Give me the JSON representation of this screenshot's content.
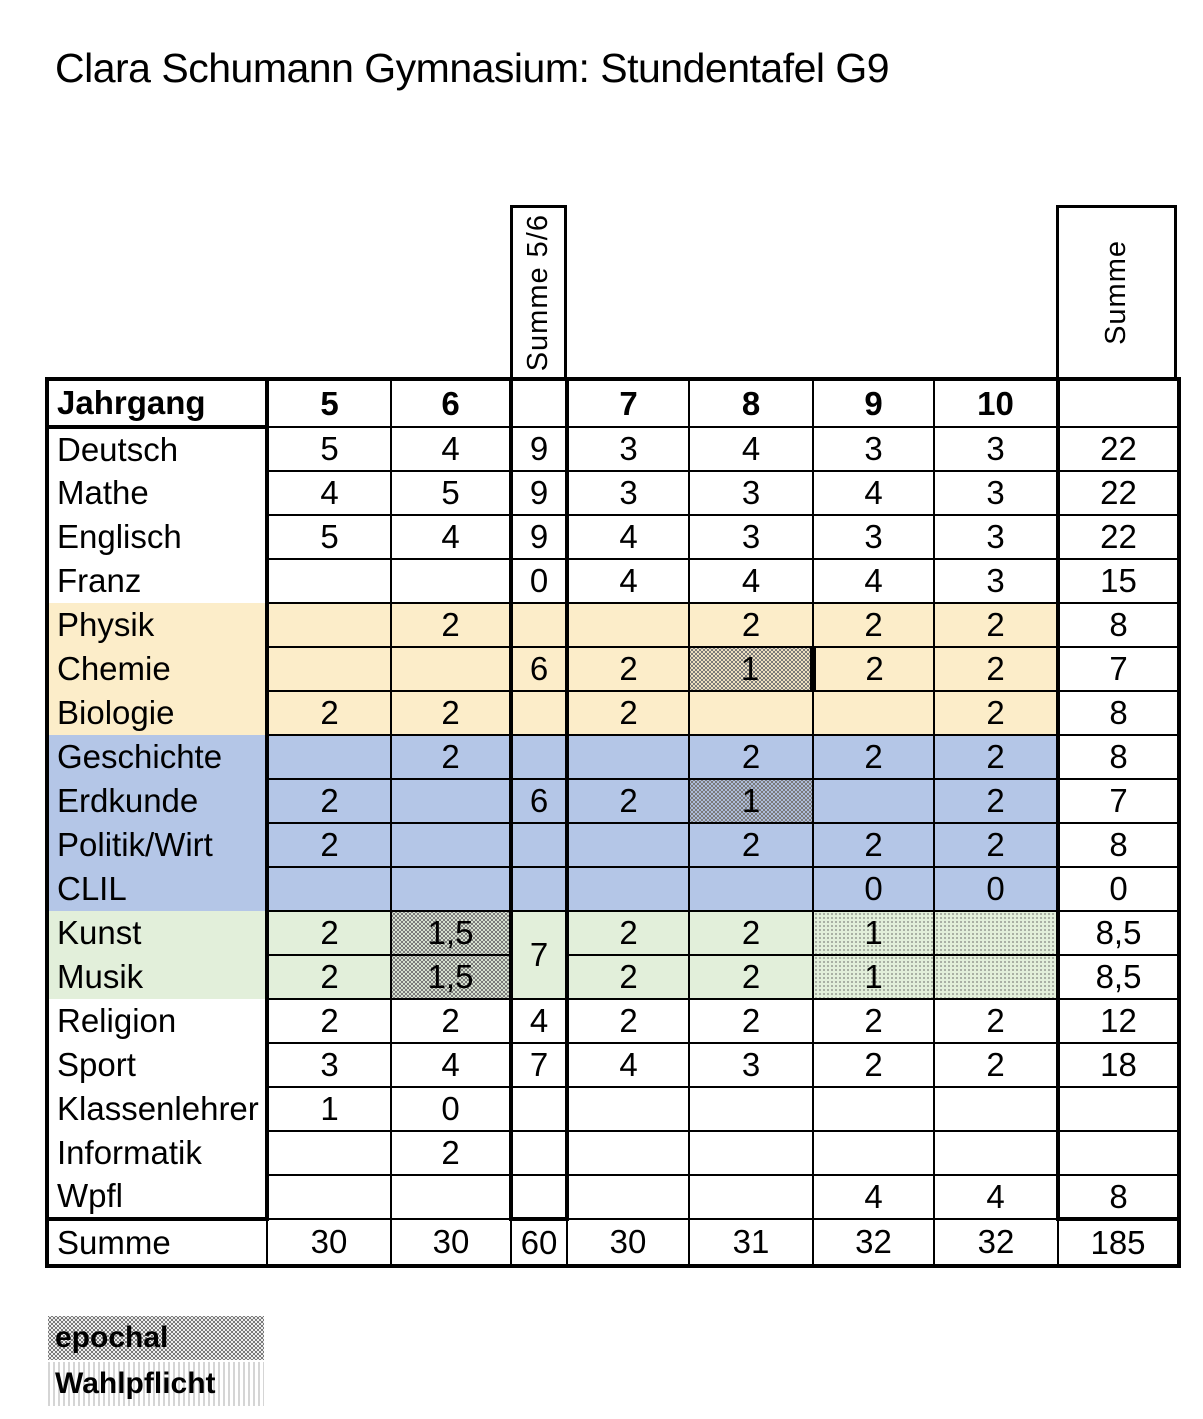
{
  "title": "Clara Schumann Gymnasium: Stundentafel G9",
  "colors": {
    "science_yellow": "#FCEDC9",
    "social_blue": "#B4C6E7",
    "arts_green": "#E2EFDA",
    "grid_black": "#000000",
    "pattern_gray": "#7a7a7a"
  },
  "vertical_headers": {
    "summe56": "Summe 5/6",
    "summe": "Summe"
  },
  "table": {
    "header": {
      "label": "Jahrgang",
      "cols": [
        "5",
        "6",
        "",
        "7",
        "8",
        "9",
        "10",
        ""
      ]
    },
    "rows": [
      {
        "subject": "Deutsch",
        "group": "plain",
        "cells": [
          "5",
          "4",
          "9",
          "3",
          "4",
          "3",
          "3",
          "22"
        ]
      },
      {
        "subject": "Mathe",
        "group": "plain",
        "cells": [
          "4",
          "5",
          "9",
          "3",
          "3",
          "4",
          "3",
          "22"
        ]
      },
      {
        "subject": "Englisch",
        "group": "plain",
        "cells": [
          "5",
          "4",
          "9",
          "4",
          "3",
          "3",
          "3",
          "22"
        ]
      },
      {
        "subject": "Franz",
        "group": "plain",
        "cells": [
          "",
          "",
          "0",
          "4",
          "4",
          "4",
          "3",
          "15"
        ]
      },
      {
        "subject": "Physik",
        "group": "yellow",
        "cells": [
          "",
          "2",
          "",
          "",
          "2",
          "2",
          "2",
          "8"
        ]
      },
      {
        "subject": "Chemie",
        "group": "yellow",
        "cells": [
          "",
          "",
          "6",
          "2",
          {
            "v": "1",
            "pat": "epochal",
            "thick": true
          },
          "2",
          "2",
          "7"
        ]
      },
      {
        "subject": "Biologie",
        "group": "yellow",
        "cells": [
          "2",
          "2",
          "",
          "2",
          "",
          "",
          "2",
          "8"
        ]
      },
      {
        "subject": "Geschichte",
        "group": "blue",
        "cells": [
          "",
          "2",
          "",
          "",
          "2",
          "2",
          "2",
          "8"
        ]
      },
      {
        "subject": "Erdkunde",
        "group": "blue",
        "cells": [
          "2",
          "",
          "6",
          "2",
          {
            "v": "1",
            "pat": "epochal"
          },
          "",
          "2",
          "7"
        ]
      },
      {
        "subject": "Politik/Wirt",
        "group": "blue",
        "cells": [
          "2",
          "",
          "",
          "",
          "2",
          "2",
          "2",
          "8"
        ]
      },
      {
        "subject": "CLIL",
        "group": "blue",
        "cells": [
          "",
          "",
          "",
          "",
          "",
          "0",
          "0",
          "0"
        ]
      },
      {
        "subject": "Kunst",
        "group": "green",
        "cells": [
          "2",
          {
            "v": "1,5",
            "pat": "epochal"
          },
          {
            "v": "7",
            "span": 2
          },
          "2",
          "2",
          {
            "v": "1",
            "pat": "wahl"
          },
          {
            "v": "",
            "pat": "wahl"
          },
          "8,5"
        ]
      },
      {
        "subject": "Musik",
        "group": "green",
        "cells": [
          "2",
          {
            "v": "1,5",
            "pat": "epochal"
          },
          {
            "skip": true
          },
          "2",
          "2",
          {
            "v": "1",
            "pat": "wahl"
          },
          {
            "v": "",
            "pat": "wahl"
          },
          "8,5"
        ]
      },
      {
        "subject": "Religion",
        "group": "plain",
        "cells": [
          "2",
          "2",
          "4",
          "2",
          "2",
          "2",
          "2",
          "12"
        ]
      },
      {
        "subject": "Sport",
        "group": "plain",
        "cells": [
          "3",
          "4",
          "7",
          "4",
          "3",
          "2",
          "2",
          "18"
        ]
      },
      {
        "subject": "Klassenlehrer",
        "group": "plain",
        "cells": [
          "1",
          "0",
          "",
          "",
          "",
          "",
          "",
          ""
        ]
      },
      {
        "subject": "Informatik",
        "group": "plain",
        "cells": [
          "",
          "2",
          "",
          "",
          "",
          "",
          "",
          ""
        ]
      },
      {
        "subject": "Wpfl",
        "group": "plain",
        "cells": [
          "",
          "",
          "",
          "",
          "",
          "4",
          "4",
          "8"
        ]
      }
    ],
    "footer": {
      "label": "Summe",
      "values": [
        "30",
        "30",
        "60",
        "30",
        "31",
        "32",
        "32",
        "185"
      ]
    }
  },
  "legend": [
    {
      "label": "epochal",
      "pattern": "epochal"
    },
    {
      "label": "Wahlpflicht",
      "pattern": "wahlpflicht"
    }
  ]
}
